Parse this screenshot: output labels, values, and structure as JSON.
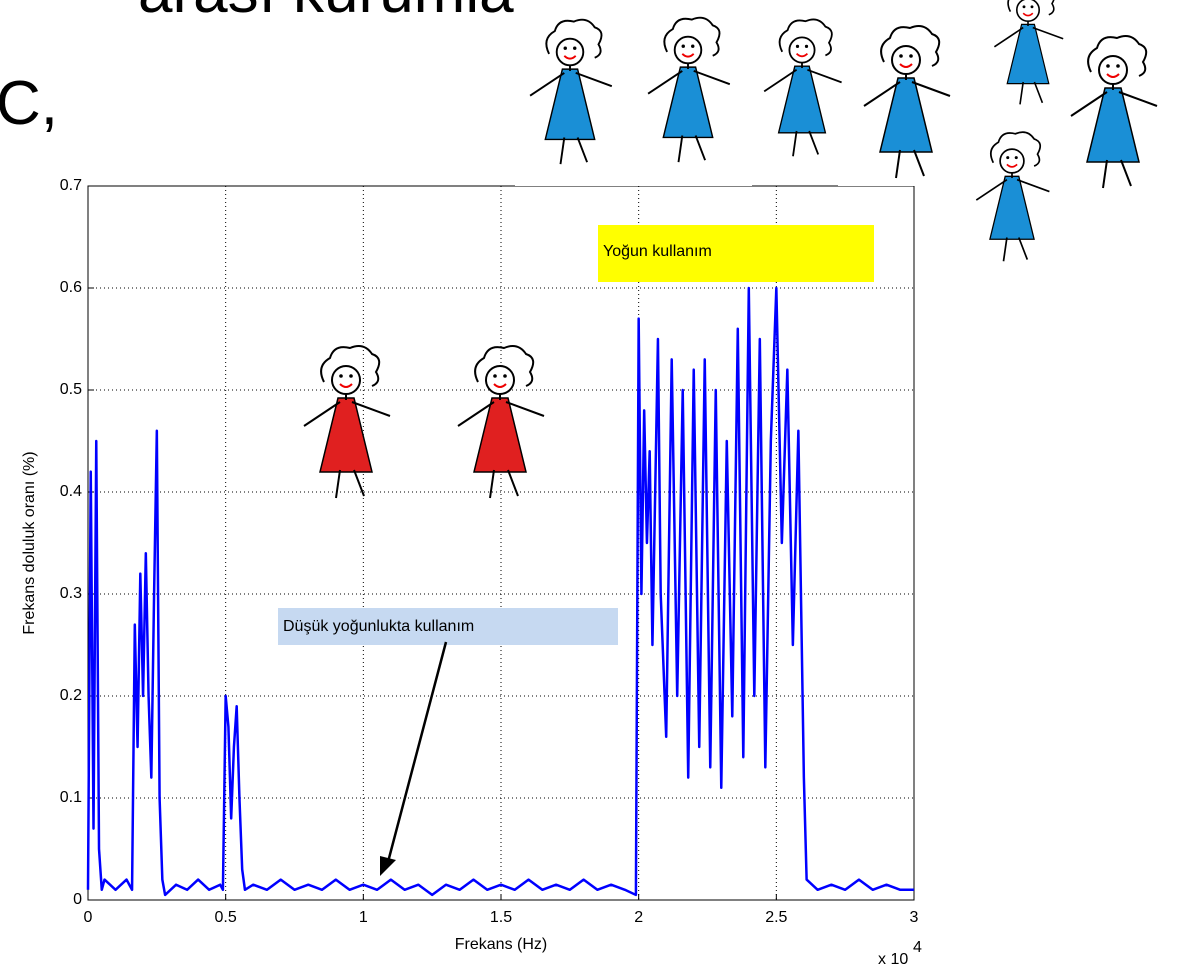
{
  "header_lines": [
    "arası kurumlar",
    "C,"
  ],
  "chart_data": {
    "type": "line",
    "xlabel": "Frekans (Hz)",
    "ylabel": "Frekans doluluk oranı (%)",
    "x_multiplier": "x 10",
    "x_multiplier_exponent": "4",
    "annotations": [
      "Yoğun kullanım",
      "Düşük yoğunlukta kullanım"
    ],
    "xlim": [
      0,
      3
    ],
    "ylim": [
      0,
      0.7
    ],
    "xticks": [
      0,
      0.5,
      1,
      1.5,
      2,
      2.5,
      3
    ],
    "yticks": [
      0,
      0.1,
      0.2,
      0.3,
      0.4,
      0.5,
      0.6,
      0.7
    ],
    "grid": true,
    "x": [
      0,
      0.01,
      0.02,
      0.03,
      0.04,
      0.05,
      0.06,
      0.1,
      0.14,
      0.16,
      0.17,
      0.18,
      0.19,
      0.2,
      0.21,
      0.22,
      0.23,
      0.24,
      0.25,
      0.26,
      0.27,
      0.28,
      0.32,
      0.36,
      0.4,
      0.44,
      0.48,
      0.49,
      0.5,
      0.51,
      0.52,
      0.53,
      0.54,
      0.55,
      0.56,
      0.57,
      0.6,
      0.65,
      0.7,
      0.75,
      0.8,
      0.85,
      0.9,
      0.95,
      1.0,
      1.05,
      1.1,
      1.15,
      1.2,
      1.25,
      1.3,
      1.35,
      1.4,
      1.45,
      1.5,
      1.55,
      1.6,
      1.65,
      1.7,
      1.75,
      1.8,
      1.85,
      1.9,
      1.95,
      1.99,
      2.0,
      2.01,
      2.02,
      2.03,
      2.04,
      2.05,
      2.06,
      2.07,
      2.08,
      2.1,
      2.12,
      2.14,
      2.16,
      2.18,
      2.2,
      2.22,
      2.24,
      2.26,
      2.28,
      2.3,
      2.32,
      2.34,
      2.36,
      2.38,
      2.4,
      2.42,
      2.44,
      2.46,
      2.48,
      2.5,
      2.52,
      2.54,
      2.56,
      2.58,
      2.6,
      2.61,
      2.65,
      2.7,
      2.75,
      2.8,
      2.85,
      2.9,
      2.95,
      3.0
    ],
    "series": [
      {
        "color": "#0000ff",
        "values": [
          0.01,
          0.42,
          0.07,
          0.45,
          0.05,
          0.01,
          0.02,
          0.01,
          0.02,
          0.01,
          0.27,
          0.15,
          0.32,
          0.2,
          0.34,
          0.2,
          0.12,
          0.3,
          0.46,
          0.1,
          0.02,
          0.005,
          0.015,
          0.01,
          0.02,
          0.01,
          0.015,
          0.01,
          0.2,
          0.17,
          0.08,
          0.15,
          0.19,
          0.1,
          0.03,
          0.01,
          0.015,
          0.01,
          0.02,
          0.01,
          0.015,
          0.01,
          0.02,
          0.01,
          0.015,
          0.01,
          0.02,
          0.01,
          0.015,
          0.005,
          0.015,
          0.01,
          0.02,
          0.01,
          0.015,
          0.01,
          0.02,
          0.01,
          0.015,
          0.01,
          0.02,
          0.01,
          0.015,
          0.01,
          0.005,
          0.57,
          0.3,
          0.48,
          0.35,
          0.44,
          0.25,
          0.4,
          0.55,
          0.3,
          0.16,
          0.53,
          0.2,
          0.5,
          0.12,
          0.52,
          0.15,
          0.53,
          0.13,
          0.5,
          0.11,
          0.45,
          0.18,
          0.56,
          0.14,
          0.6,
          0.2,
          0.55,
          0.13,
          0.45,
          0.6,
          0.35,
          0.52,
          0.25,
          0.46,
          0.12,
          0.02,
          0.01,
          0.015,
          0.01,
          0.02,
          0.01,
          0.015,
          0.01,
          0.01
        ]
      }
    ]
  }
}
